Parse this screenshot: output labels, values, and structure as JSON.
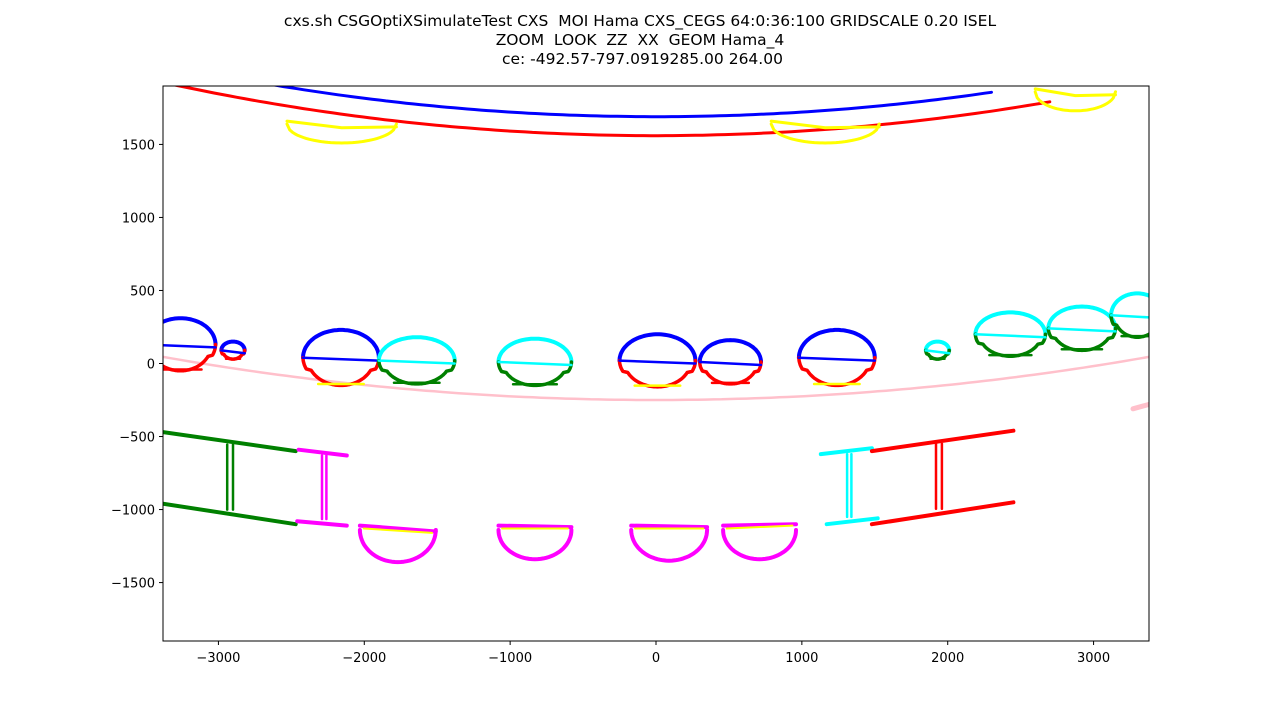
{
  "title": {
    "line1": "cxs.sh CSGOptiXSimulateTest CXS  MOI Hama CXS_CEGS 64:0:36:100 GRIDSCALE 0.20 ISEL",
    "line2": "ZOOM  LOOK  ZZ  XX  GEOM Hama_4",
    "line3": " ce: -492.57-797.0919285.00 264.00"
  },
  "chart_data": {
    "type": "scatter",
    "title": "cxs.sh CSGOptiXSimulateTest CXS  MOI Hama CXS_CEGS 64:0:36:100 GRIDSCALE 0.20 ISEL ZOOM  LOOK  ZZ  XX  GEOM Hama_4  ce: -492.57-797.0919285.00 264.00",
    "xlabel": "",
    "ylabel": "",
    "xlim": [
      -3380,
      3380
    ],
    "ylim": [
      -1900,
      1900
    ],
    "xticks": [
      -3000,
      -2000,
      -1000,
      0,
      1000,
      2000,
      3000
    ],
    "xtick_labels": [
      "−3000",
      "−2000",
      "−1000",
      "0",
      "1000",
      "2000",
      "3000"
    ],
    "yticks": [
      -1500,
      -1000,
      -500,
      0,
      500,
      1000,
      1500
    ],
    "ytick_labels": [
      "−1500",
      "−1000",
      "−500",
      "0",
      "500",
      "1000",
      "1500"
    ],
    "grid": false,
    "colors": {
      "blue": "#0000ff",
      "red": "#ff0000",
      "yellow": "#ffff00",
      "green": "#008000",
      "cyan": "#00ffff",
      "magenta": "#ff00ff",
      "pink": "#ffc0cb"
    },
    "arcs": [
      {
        "name": "outer-blue-arc",
        "color": "blue",
        "cx": 0,
        "cy": 17600,
        "r": 15910,
        "x0": -3300,
        "x1": 2300
      },
      {
        "name": "outer-red-arc",
        "color": "red",
        "cx": 0,
        "cy": 17400,
        "r": 15840,
        "x0": -3380,
        "x1": 2700
      },
      {
        "name": "inner-pink-arc",
        "color": "pink",
        "cx": 0,
        "cy": 19240,
        "r": 19490,
        "x0": -3380,
        "x1": 3380
      }
    ],
    "lenses": [
      {
        "name": "yellow-lens-1",
        "color": "yellow",
        "x0": -2530,
        "x1": -1780,
        "ytop": 1660,
        "depth": 130
      },
      {
        "name": "yellow-lens-2",
        "color": "yellow",
        "x0": 790,
        "x1": 1530,
        "ytop": 1660,
        "depth": 130
      },
      {
        "name": "yellow-lens-3",
        "color": "yellow",
        "x0": 2600,
        "x1": 3150,
        "ytop": 1880,
        "depth": 130
      }
    ],
    "pmts": [
      {
        "name": "pmt-1",
        "cx": -3260,
        "cy": 130,
        "rx": 240,
        "ry": 180,
        "top": "blue",
        "bottom": "red",
        "cut": "red"
      },
      {
        "name": "pmt-2",
        "cx": -2900,
        "cy": 90,
        "rx": 80,
        "ry": 60,
        "top": "blue",
        "bottom": "red",
        "cut": "red"
      },
      {
        "name": "pmt-3",
        "cx": -2160,
        "cy": 40,
        "rx": 260,
        "ry": 190,
        "top": "blue",
        "bottom": "red",
        "cut": "yellow"
      },
      {
        "name": "pmt-4",
        "cx": -1640,
        "cy": 20,
        "rx": 260,
        "ry": 160,
        "top": "cyan",
        "bottom": "green",
        "cut": "green"
      },
      {
        "name": "pmt-5",
        "cx": -830,
        "cy": 10,
        "rx": 250,
        "ry": 160,
        "top": "cyan",
        "bottom": "green",
        "cut": "green"
      },
      {
        "name": "pmt-6",
        "cx": 10,
        "cy": 20,
        "rx": 260,
        "ry": 180,
        "top": "blue",
        "bottom": "red",
        "cut": "yellow"
      },
      {
        "name": "pmt-7",
        "cx": 510,
        "cy": 10,
        "rx": 210,
        "ry": 150,
        "top": "blue",
        "bottom": "red",
        "cut": "red"
      },
      {
        "name": "pmt-8",
        "cx": 1240,
        "cy": 40,
        "rx": 260,
        "ry": 190,
        "top": "blue",
        "bottom": "red",
        "cut": "yellow"
      },
      {
        "name": "pmt-9",
        "cx": 1930,
        "cy": 90,
        "rx": 80,
        "ry": 60,
        "top": "cyan",
        "bottom": "green",
        "cut": "green"
      },
      {
        "name": "pmt-10",
        "cx": 2430,
        "cy": 200,
        "rx": 240,
        "ry": 150,
        "top": "cyan",
        "bottom": "green",
        "cut": "green"
      },
      {
        "name": "pmt-11",
        "cx": 2920,
        "cy": 240,
        "rx": 230,
        "ry": 150,
        "top": "cyan",
        "bottom": "green",
        "cut": "green"
      },
      {
        "name": "pmt-12",
        "cx": 3300,
        "cy": 330,
        "rx": 180,
        "ry": 150,
        "top": "cyan",
        "bottom": "green",
        "cut": "green"
      }
    ],
    "struts": [
      {
        "name": "green-strut-left",
        "color": "green",
        "pts": [
          [
            -3380,
            -470
          ],
          [
            -2470,
            -600
          ],
          [
            -3380,
            -960
          ],
          [
            -2470,
            -1100
          ]
        ],
        "legs": [
          -2940,
          -2900
        ]
      },
      {
        "name": "magenta-strut-left",
        "color": "magenta",
        "pts": [
          [
            -2450,
            -590
          ],
          [
            -2120,
            -630
          ],
          [
            -2460,
            -1080
          ],
          [
            -2120,
            -1110
          ]
        ],
        "legs": [
          -2290,
          -2260
        ]
      },
      {
        "name": "cyan-strut-right",
        "color": "cyan",
        "pts": [
          [
            1130,
            -620
          ],
          [
            1480,
            -580
          ],
          [
            1170,
            -1100
          ],
          [
            1520,
            -1060
          ]
        ],
        "legs": [
          1310,
          1340
        ]
      },
      {
        "name": "red-strut-right",
        "color": "red",
        "pts": [
          [
            1480,
            -600
          ],
          [
            2450,
            -460
          ],
          [
            1480,
            -1100
          ],
          [
            2450,
            -950
          ]
        ],
        "legs": [
          1920,
          1960
        ]
      }
    ],
    "cups": [
      {
        "name": "magenta-cup-1",
        "cx": -1770,
        "ytop": -1120,
        "rx": 260,
        "depth": 220,
        "slant": -30
      },
      {
        "name": "magenta-cup-2",
        "cx": -830,
        "ytop": -1120,
        "rx": 250,
        "depth": 200,
        "slant": 0
      },
      {
        "name": "magenta-cup-3",
        "cx": 90,
        "ytop": -1120,
        "rx": 260,
        "depth": 210,
        "slant": 0
      },
      {
        "name": "magenta-cup-4",
        "cx": 710,
        "ytop": -1120,
        "rx": 250,
        "depth": 200,
        "slant": 20
      }
    ],
    "pink-stub": {
      "x0": 3270,
      "x1": 3380,
      "y": -310
    }
  }
}
